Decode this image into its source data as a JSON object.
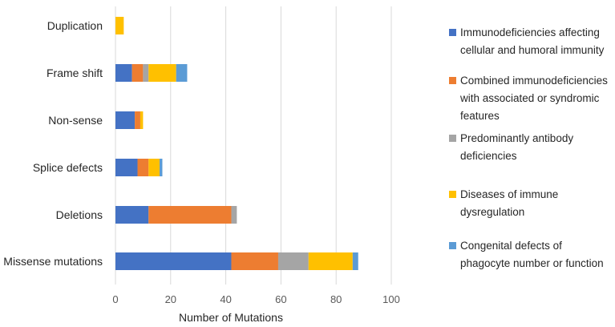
{
  "chart_data": {
    "type": "bar",
    "orientation": "horizontal",
    "stacked": true,
    "categories": [
      "Duplication",
      "Frame shift",
      "Non-sense",
      "Splice defects",
      "Deletions",
      "Missense mutations"
    ],
    "series": [
      {
        "name": "Immunodeficiencies affecting cellular and humoral immunity",
        "color": "#4472C4",
        "values": [
          0,
          6,
          7,
          8,
          12,
          42
        ]
      },
      {
        "name": "Combined immunodeficiencies with associated or syndromic features",
        "color": "#ED7D31",
        "values": [
          0,
          4,
          2,
          4,
          30,
          17
        ]
      },
      {
        "name": "Predominantly antibody deficiencies",
        "color": "#A5A5A5",
        "values": [
          0,
          2,
          0,
          0,
          2,
          11
        ]
      },
      {
        "name": "Diseases of immune dysregulation",
        "color": "#FFC000",
        "values": [
          3,
          10,
          1,
          4,
          0,
          16
        ]
      },
      {
        "name": "Congenital defects of phagocyte number or function",
        "color": "#5B9BD5",
        "values": [
          0,
          4,
          0,
          1,
          0,
          2
        ]
      }
    ],
    "xlabel": "Number of Mutations",
    "xlim": [
      0,
      100
    ],
    "xticks": [
      0,
      20,
      40,
      60,
      80,
      100
    ],
    "grid": true,
    "legend_position": "right"
  }
}
